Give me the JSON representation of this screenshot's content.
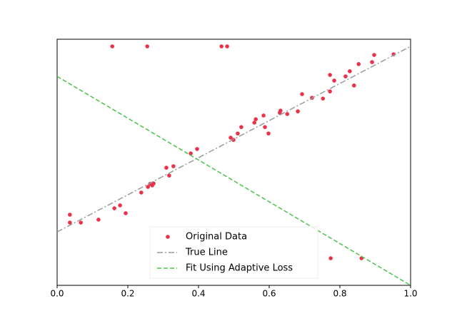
{
  "chart_data": {
    "type": "scatter",
    "xlim": [
      0,
      1
    ],
    "ylim": [
      0,
      1
    ],
    "xticks": [
      {
        "value": 0,
        "label": "0.0"
      },
      0.2,
      0.4,
      0.6,
      0.8,
      {
        "value": 1,
        "label": "1.0"
      }
    ],
    "legend": "lower center",
    "series": [
      {
        "name": "Original Data",
        "type": "scatter",
        "color": "#e8334a",
        "x": [
          0.036,
          0.036,
          0.067,
          0.117,
          0.162,
          0.178,
          0.194,
          0.238,
          0.257,
          0.263,
          0.269,
          0.273,
          0.309,
          0.317,
          0.329,
          0.378,
          0.396,
          0.156,
          0.255,
          0.465,
          0.481,
          0.491,
          0.499,
          0.511,
          0.521,
          0.558,
          0.562,
          0.584,
          0.588,
          0.598,
          0.63,
          0.632,
          0.651,
          0.681,
          0.693,
          0.721,
          0.752,
          0.772,
          0.772,
          0.784,
          0.816,
          0.828,
          0.84,
          0.853,
          0.891,
          0.897,
          0.952,
          0.774,
          0.861
        ],
        "values": [
          0.287,
          0.255,
          0.255,
          0.267,
          0.313,
          0.325,
          0.293,
          0.377,
          0.4,
          0.412,
          0.406,
          0.414,
          0.478,
          0.446,
          0.484,
          0.536,
          0.554,
          0.971,
          0.971,
          0.971,
          0.971,
          0.6,
          0.591,
          0.617,
          0.643,
          0.661,
          0.675,
          0.69,
          0.643,
          0.617,
          0.701,
          0.71,
          0.696,
          0.707,
          0.777,
          0.762,
          0.759,
          0.788,
          0.855,
          0.832,
          0.849,
          0.87,
          0.812,
          0.899,
          0.907,
          0.936,
          0.939,
          0.11,
          0.11
        ]
      },
      {
        "name": "True Line",
        "type": "line",
        "dash": "dashdot",
        "color": "#9a9a9a",
        "x": [
          0,
          1
        ],
        "values": [
          0.217,
          0.971
        ]
      },
      {
        "name": "Fit Using Adaptive Loss",
        "type": "line",
        "dash": "dashed",
        "color": "#4cc34c",
        "x": [
          0,
          1
        ],
        "values": [
          0.849,
          0
        ]
      }
    ]
  }
}
